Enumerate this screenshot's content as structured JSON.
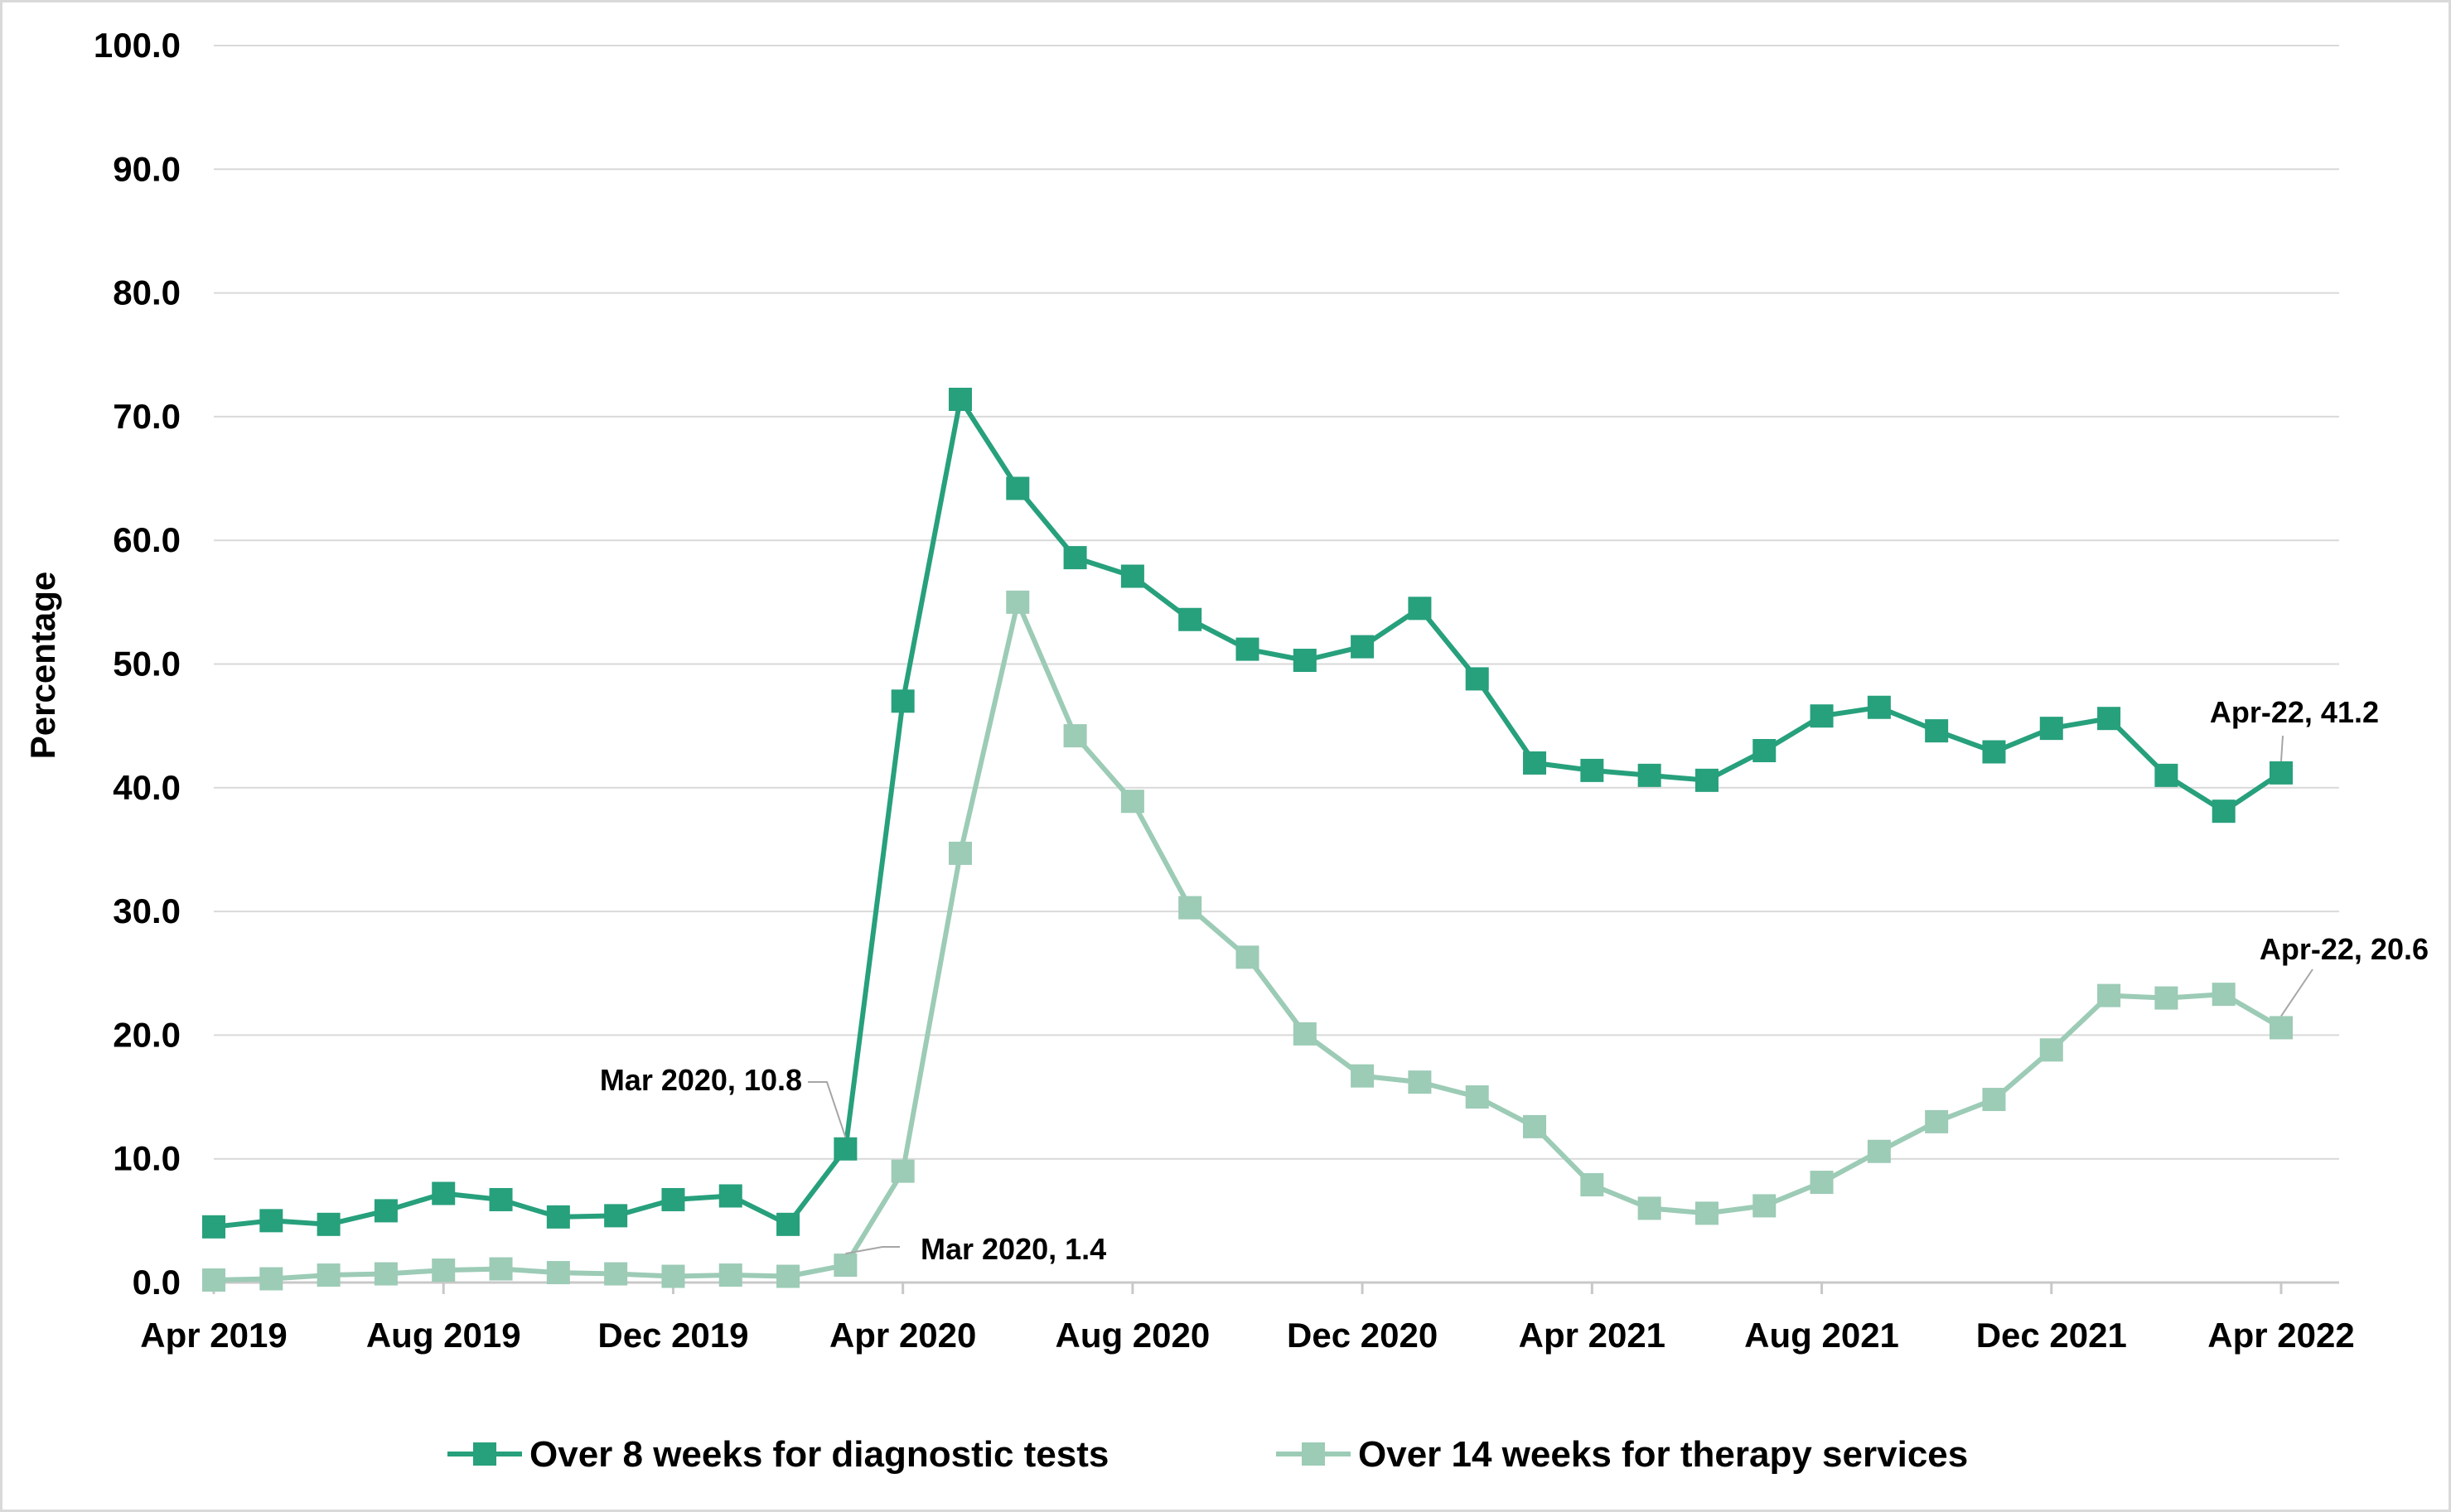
{
  "chart_data": {
    "type": "line",
    "title": "",
    "xlabel": "",
    "ylabel": "Percentage",
    "ylim": [
      0,
      100
    ],
    "yticks": [
      "0.0",
      "10.0",
      "20.0",
      "30.0",
      "40.0",
      "50.0",
      "60.0",
      "70.0",
      "80.0",
      "90.0",
      "100.0"
    ],
    "x": [
      "Apr 2019",
      "May 2019",
      "Jun 2019",
      "Jul 2019",
      "Aug 2019",
      "Sep 2019",
      "Oct 2019",
      "Nov 2019",
      "Dec 2019",
      "Jan 2020",
      "Feb 2020",
      "Mar 2020",
      "Apr 2020",
      "May 2020",
      "Jun 2020",
      "Jul 2020",
      "Aug 2020",
      "Sep 2020",
      "Oct 2020",
      "Nov 2020",
      "Dec 2020",
      "Jan 2021",
      "Feb 2021",
      "Mar 2021",
      "Apr 2021",
      "May 2021",
      "Jun 2021",
      "Jul 2021",
      "Aug 2021",
      "Sep 2021",
      "Oct 2021",
      "Nov 2021",
      "Dec 2021",
      "Jan 2022",
      "Feb 2022",
      "Mar 2022",
      "Apr 2022"
    ],
    "xticks": [
      "Apr 2019",
      "Aug 2019",
      "Dec 2019",
      "Apr 2020",
      "Aug 2020",
      "Dec 2020",
      "Apr 2021",
      "Aug 2021",
      "Dec 2021",
      "Apr 2022"
    ],
    "series": [
      {
        "name": "Over 8 weeks for diagnostic tests",
        "color": "#27a07c",
        "values": [
          4.5,
          5.0,
          4.7,
          5.8,
          7.2,
          6.7,
          5.3,
          5.4,
          6.7,
          7.0,
          4.7,
          10.8,
          47.0,
          71.4,
          64.2,
          58.6,
          57.1,
          53.6,
          51.2,
          50.3,
          51.4,
          54.5,
          48.8,
          42.0,
          41.4,
          41.0,
          40.6,
          43.0,
          45.8,
          46.5,
          44.6,
          42.9,
          44.8,
          45.6,
          41.0,
          38.1,
          41.2
        ]
      },
      {
        "name": "Over 14 weeks for therapy services",
        "color": "#9ccbb6",
        "values": [
          0.2,
          0.3,
          0.6,
          0.7,
          1.0,
          1.1,
          0.8,
          0.7,
          0.5,
          0.6,
          0.5,
          1.4,
          9.0,
          34.7,
          55.0,
          44.2,
          38.9,
          30.3,
          26.3,
          20.1,
          16.7,
          16.2,
          15.0,
          12.6,
          7.9,
          6.0,
          5.6,
          6.2,
          8.1,
          10.6,
          13.0,
          14.8,
          18.8,
          23.2,
          23.0,
          23.3,
          20.6
        ]
      }
    ],
    "annotations": [
      {
        "series": 0,
        "index": 11,
        "text": "Mar 2020, 10.8"
      },
      {
        "series": 1,
        "index": 11,
        "text": "Mar 2020, 1.4"
      },
      {
        "series": 0,
        "index": 36,
        "text": "Apr-22, 41.2"
      },
      {
        "series": 1,
        "index": 36,
        "text": "Apr-22, 20.6"
      }
    ],
    "grid": true,
    "legend_position": "bottom"
  }
}
